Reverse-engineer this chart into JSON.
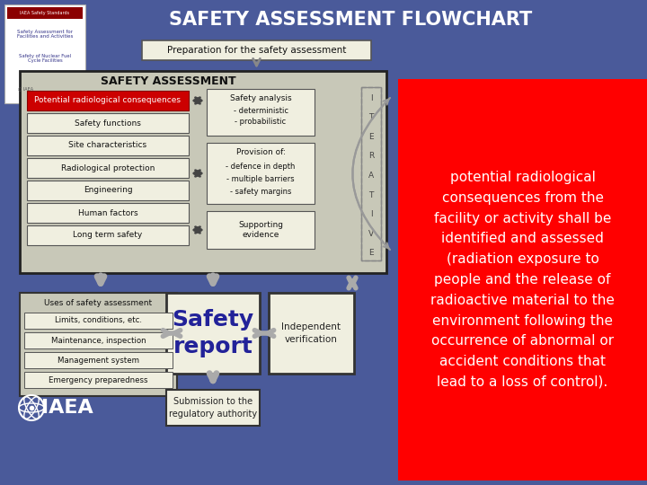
{
  "title": "SAFETY ASSESSMENT FLOWCHART",
  "bg_color": "#4a5a9a",
  "title_color": "white",
  "red_box_color": "#cc0000",
  "flowchart_bg": "#c8c8b8",
  "box_bg": "#f0efe0",
  "red_panel_color": "#ff0000",
  "prep_box": "Preparation for the safety assessment",
  "safety_assessment_label": "SAFETY ASSESSMENT",
  "potential_radiological": "Potential radiological consequences",
  "safety_functions": "Safety functions",
  "site_characteristics": "Site characteristics",
  "radiological_protection": "Radiological protection",
  "engineering": "Engineering",
  "human_factors": "Human factors",
  "long_term_safety": "Long term safety",
  "safety_analysis_title": "Safety analysis",
  "safety_analysis_items": [
    "- deterministic",
    "- probabilistic"
  ],
  "provision_title": "Provision of:",
  "provision_items": [
    "- defence in depth",
    "- multiple barriers",
    "- safety margins"
  ],
  "supporting_title": "Supporting\nevidence",
  "iterative_letters": [
    "I",
    "T",
    "E",
    "R",
    "A",
    "T",
    "I",
    "V",
    "E"
  ],
  "uses_box_title": "Uses of safety assessment",
  "uses_items": [
    "Limits, conditions, etc.",
    "Maintenance, inspection",
    "Management system",
    "Emergency preparedness"
  ],
  "safety_report_text": "Safety\nreport",
  "independent_verification": "Independent\nverification",
  "submission_text": "Submission to the\nregulatory authority",
  "iaea_text": "IAEA",
  "right_panel_text": "potential radiological\nconsequences from the\nfacility or activity shall be\nidentified and assessed\n(radiation exposure to\npeople and the release of\nradioactive material to the\nenvironment following the\noccurrence of abnormal or\naccident conditions that\nlead to a loss of control)."
}
